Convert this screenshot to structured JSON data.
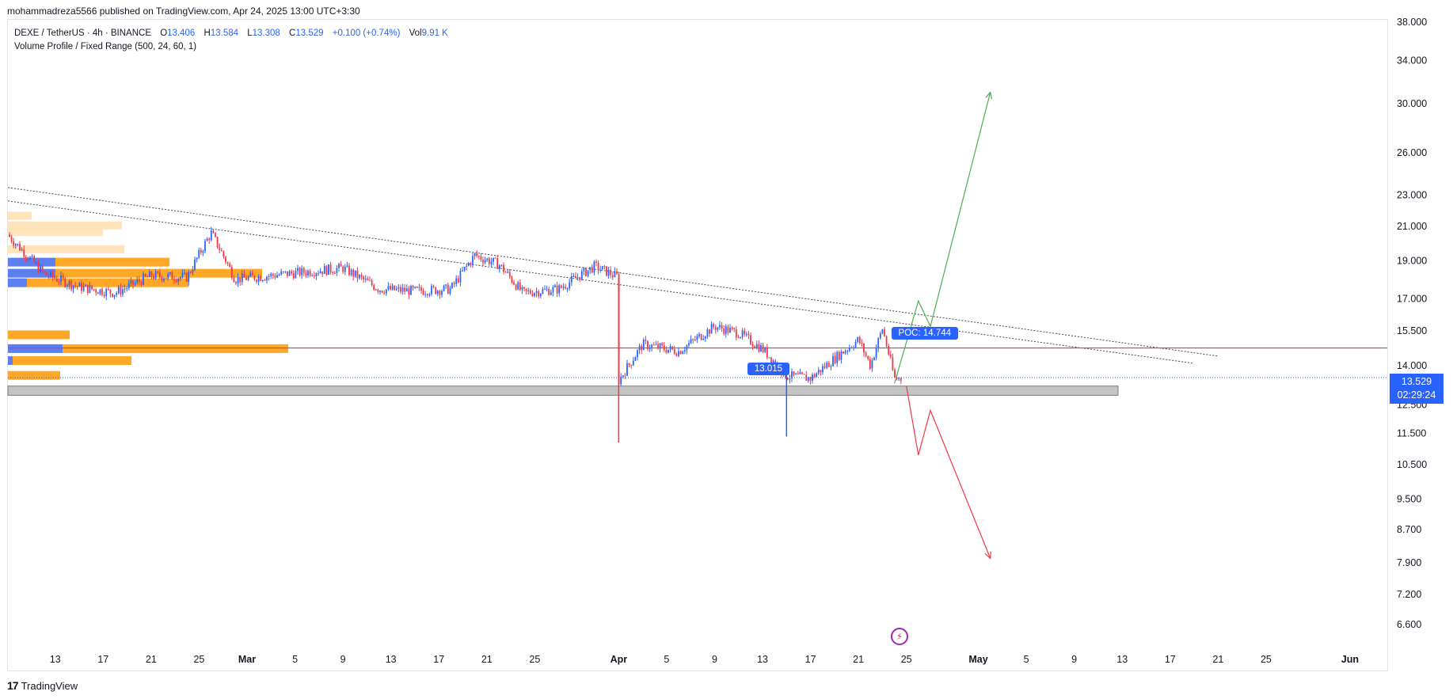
{
  "header": {
    "publisher_text": "mohammadreza5566 published on TradingView.com, Apr 24, 2025 13:00 UTC+3:30"
  },
  "legend": {
    "symbol": "DEXE / TetherUS · 4h · BINANCE",
    "open_label": "O",
    "open": "13.406",
    "high_label": "H",
    "high": "13.584",
    "low_label": "L",
    "low": "13.308",
    "close_label": "C",
    "close": "13.529",
    "change": "+0.100 (+0.74%)",
    "vol_label": "Vol",
    "volume": "9.91 K",
    "indicator": "Volume Profile / Fixed Range (500, 24, 60, 1)"
  },
  "price_tag": {
    "price": "13.529",
    "countdown": "02:29:24"
  },
  "annotations": {
    "low_bubble": "13.015",
    "poc_bubble": "POC: 14.744"
  },
  "footer": {
    "logo": "17",
    "brand": "TradingView"
  },
  "colors": {
    "up": "#2962ff",
    "down": "#f23645",
    "accent": "#2962ff",
    "profile_orange": "#ffa726",
    "profile_blue": "#5b7ff0",
    "profile_light": "#ffe0b2",
    "poc_line": "#f23645",
    "bull_arrow": "#4caf50",
    "bear_arrow": "#f23645"
  },
  "chart_data": {
    "type": "candlestick",
    "y_scale": "log",
    "yaxis_ticks": [
      "38.000",
      "34.000",
      "30.000",
      "26.000",
      "23.000",
      "21.000",
      "19.000",
      "17.000",
      "15.500",
      "14.000",
      "12.500",
      "11.500",
      "10.500",
      "9.500",
      "8.700",
      "7.900",
      "7.200",
      "6.600"
    ],
    "xaxis_ticks": [
      "13",
      "17",
      "21",
      "25",
      "Mar",
      "5",
      "9",
      "13",
      "17",
      "21",
      "25",
      "Apr",
      "5",
      "9",
      "13",
      "17",
      "21",
      "25",
      "May",
      "5",
      "9",
      "13",
      "17",
      "21",
      "25",
      "Jun"
    ],
    "last_price": 13.529,
    "poc": 14.744,
    "marked_low": 13.015,
    "support_zone": [
      12.85,
      13.2
    ],
    "trendlines": [
      {
        "from": [
          "Feb 9",
          23.5
        ],
        "to": [
          "May 21",
          14.4
        ],
        "style": "dotted"
      },
      {
        "from": [
          "Feb 9",
          22.6
        ],
        "to": [
          "May 19",
          14.1
        ],
        "style": "dotted"
      }
    ],
    "scenarios": [
      {
        "name": "bullish",
        "path": [
          [
            "Apr 24",
            13.3
          ],
          [
            "Apr 26",
            16.9
          ],
          [
            "Apr 27",
            15.7
          ],
          [
            "May 2",
            31.0
          ]
        ]
      },
      {
        "name": "bearish",
        "path": [
          [
            "Apr 25",
            13.2
          ],
          [
            "Apr 26",
            10.8
          ],
          [
            "Apr 27",
            12.3
          ],
          [
            "May 2",
            8.0
          ]
        ]
      }
    ],
    "approx_close_path": [
      [
        "Feb 9",
        20.5
      ],
      [
        "Feb 12",
        18.3
      ],
      [
        "Feb 15",
        17.6
      ],
      [
        "Feb 18",
        17.3
      ],
      [
        "Feb 21",
        18.2
      ],
      [
        "Feb 24",
        18.1
      ],
      [
        "Feb 26",
        20.6
      ],
      [
        "Feb 28",
        18.0
      ],
      [
        "Mar 3",
        18.2
      ],
      [
        "Mar 6",
        18.4
      ],
      [
        "Mar 9",
        18.6
      ],
      [
        "Mar 12",
        17.5
      ],
      [
        "Mar 15",
        17.4
      ],
      [
        "Mar 18",
        17.5
      ],
      [
        "Mar 20",
        19.3
      ],
      [
        "Mar 22",
        18.8
      ],
      [
        "Mar 24",
        17.3
      ],
      [
        "Mar 27",
        17.5
      ],
      [
        "Mar 30",
        18.7
      ],
      [
        "Apr 1",
        18.1
      ],
      [
        "Apr 1",
        13.4
      ],
      [
        "Apr 3",
        14.9
      ],
      [
        "Apr 6",
        14.6
      ],
      [
        "Apr 9",
        15.7
      ],
      [
        "Apr 11",
        15.4
      ],
      [
        "Apr 13",
        14.7
      ],
      [
        "Apr 15",
        13.6
      ],
      [
        "Apr 17",
        13.5
      ],
      [
        "Apr 19",
        14.3
      ],
      [
        "Apr 21",
        15.1
      ],
      [
        "Apr 22",
        14.0
      ],
      [
        "Apr 23",
        15.6
      ],
      [
        "Apr 24",
        13.5
      ]
    ],
    "volume_profile_rows": [
      {
        "level": 21.6,
        "buy": 0.0,
        "sell": 0.1,
        "light": true
      },
      {
        "level": 21.0,
        "buy": 0.0,
        "sell": 0.48,
        "light": true
      },
      {
        "level": 20.6,
        "buy": 0.0,
        "sell": 0.4,
        "light": true
      },
      {
        "level": 19.6,
        "buy": 0.0,
        "sell": 0.49,
        "light": true
      },
      {
        "level": 18.9,
        "buy": 0.2,
        "sell": 0.48
      },
      {
        "level": 18.3,
        "buy": 0.2,
        "sell": 0.87
      },
      {
        "level": 17.8,
        "buy": 0.08,
        "sell": 0.68
      },
      {
        "level": 15.3,
        "buy": 0.0,
        "sell": 0.26
      },
      {
        "level": 14.7,
        "buy": 0.23,
        "sell": 0.95
      },
      {
        "level": 14.2,
        "buy": 0.02,
        "sell": 0.5
      },
      {
        "level": 13.6,
        "buy": 0.0,
        "sell": 0.22
      }
    ]
  }
}
